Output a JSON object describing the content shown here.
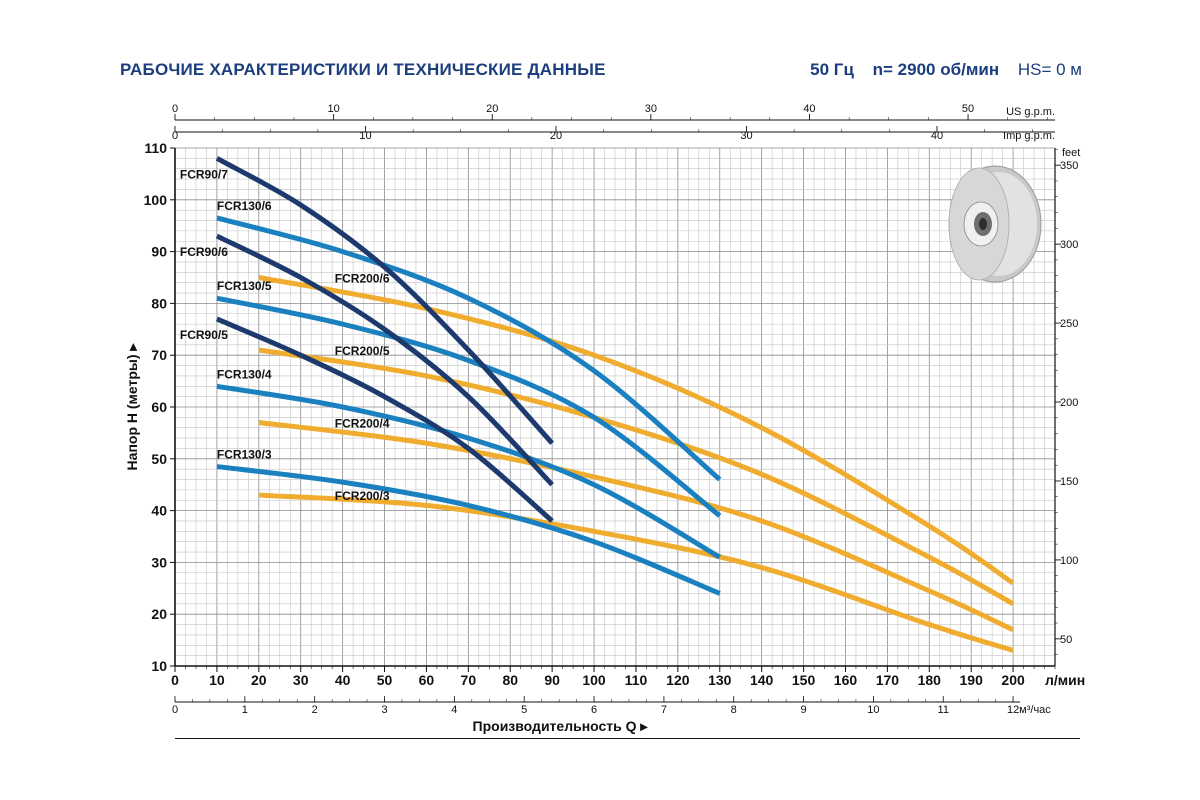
{
  "header": {
    "title": "РАБОЧИЕ ХАРАКТЕРИСТИКИ И ТЕХНИЧЕСКИЕ ДАННЫЕ",
    "frequency": "50 Гц",
    "speed": "n= 2900 об/мин",
    "hs": "HS= 0 м"
  },
  "chart_data": {
    "type": "line",
    "ylabel": "Напор H  (метры)",
    "xlabel": "Производительность Q",
    "x_unit": "л/мин",
    "x_unit_m3": "м³/час",
    "ylim": [
      10,
      110
    ],
    "xlim": [
      0,
      210
    ],
    "y_ticks": [
      10,
      20,
      30,
      40,
      50,
      60,
      70,
      80,
      90,
      100,
      110
    ],
    "x_ticks": [
      0,
      10,
      20,
      30,
      40,
      50,
      60,
      70,
      80,
      90,
      100,
      110,
      120,
      130,
      140,
      150,
      160,
      170,
      180,
      190,
      200
    ],
    "m3_ticks": [
      0,
      1,
      2,
      3,
      4,
      5,
      6,
      7,
      8,
      9,
      10,
      11,
      12
    ],
    "us_gpm_label": "US g.p.m.",
    "us_gpm_ticks": [
      0,
      10,
      20,
      30,
      40,
      50
    ],
    "imp_gpm_label": "Imp g.p.m.",
    "imp_gpm_ticks": [
      0,
      10,
      20,
      30,
      40
    ],
    "feet_label": "feet",
    "feet_ticks": [
      50,
      100,
      150,
      200,
      250,
      300,
      350
    ],
    "grid": true,
    "colors": {
      "fcr90": "#1c3a6e",
      "fcr130": "#1a80bf",
      "fcr200": "#f0ac2e"
    },
    "series": [
      {
        "name": "FCR90/7",
        "group": "fcr90",
        "x": [
          10,
          30,
          50,
          70,
          90
        ],
        "y": [
          108,
          99,
          87,
          71,
          53
        ]
      },
      {
        "name": "FCR90/6",
        "group": "fcr90",
        "x": [
          10,
          30,
          50,
          70,
          90
        ],
        "y": [
          93,
          85,
          75,
          62,
          45
        ]
      },
      {
        "name": "FCR90/5",
        "group": "fcr90",
        "x": [
          10,
          30,
          50,
          70,
          90
        ],
        "y": [
          77,
          70,
          62,
          52,
          38
        ]
      },
      {
        "name": "FCR130/6",
        "group": "fcr130",
        "x": [
          10,
          40,
          70,
          100,
          130
        ],
        "y": [
          96.5,
          90,
          81,
          67,
          46
        ]
      },
      {
        "name": "FCR130/5",
        "group": "fcr130",
        "x": [
          10,
          40,
          70,
          100,
          130
        ],
        "y": [
          81,
          76,
          69,
          58,
          39
        ]
      },
      {
        "name": "FCR130/4",
        "group": "fcr130",
        "x": [
          10,
          40,
          70,
          100,
          130
        ],
        "y": [
          64,
          60,
          54,
          45,
          31
        ]
      },
      {
        "name": "FCR130/3",
        "group": "fcr130",
        "x": [
          10,
          40,
          70,
          100,
          130
        ],
        "y": [
          48.5,
          45.5,
          41,
          34,
          24
        ]
      },
      {
        "name": "FCR200/6",
        "group": "fcr200",
        "x": [
          20,
          60,
          100,
          140,
          180,
          200
        ],
        "y": [
          85,
          79,
          70,
          56,
          37,
          26
        ]
      },
      {
        "name": "FCR200/5",
        "group": "fcr200",
        "x": [
          20,
          60,
          100,
          140,
          180,
          200
        ],
        "y": [
          71,
          66,
          58,
          47,
          31,
          22
        ]
      },
      {
        "name": "FCR200/4",
        "group": "fcr200",
        "x": [
          20,
          60,
          100,
          140,
          180,
          200
        ],
        "y": [
          57,
          53,
          46.5,
          38,
          24.5,
          17
        ]
      },
      {
        "name": "FCR200/3",
        "group": "fcr200",
        "x": [
          20,
          60,
          100,
          140,
          180,
          200
        ],
        "y": [
          43,
          41,
          36,
          29,
          18,
          13
        ]
      }
    ]
  }
}
